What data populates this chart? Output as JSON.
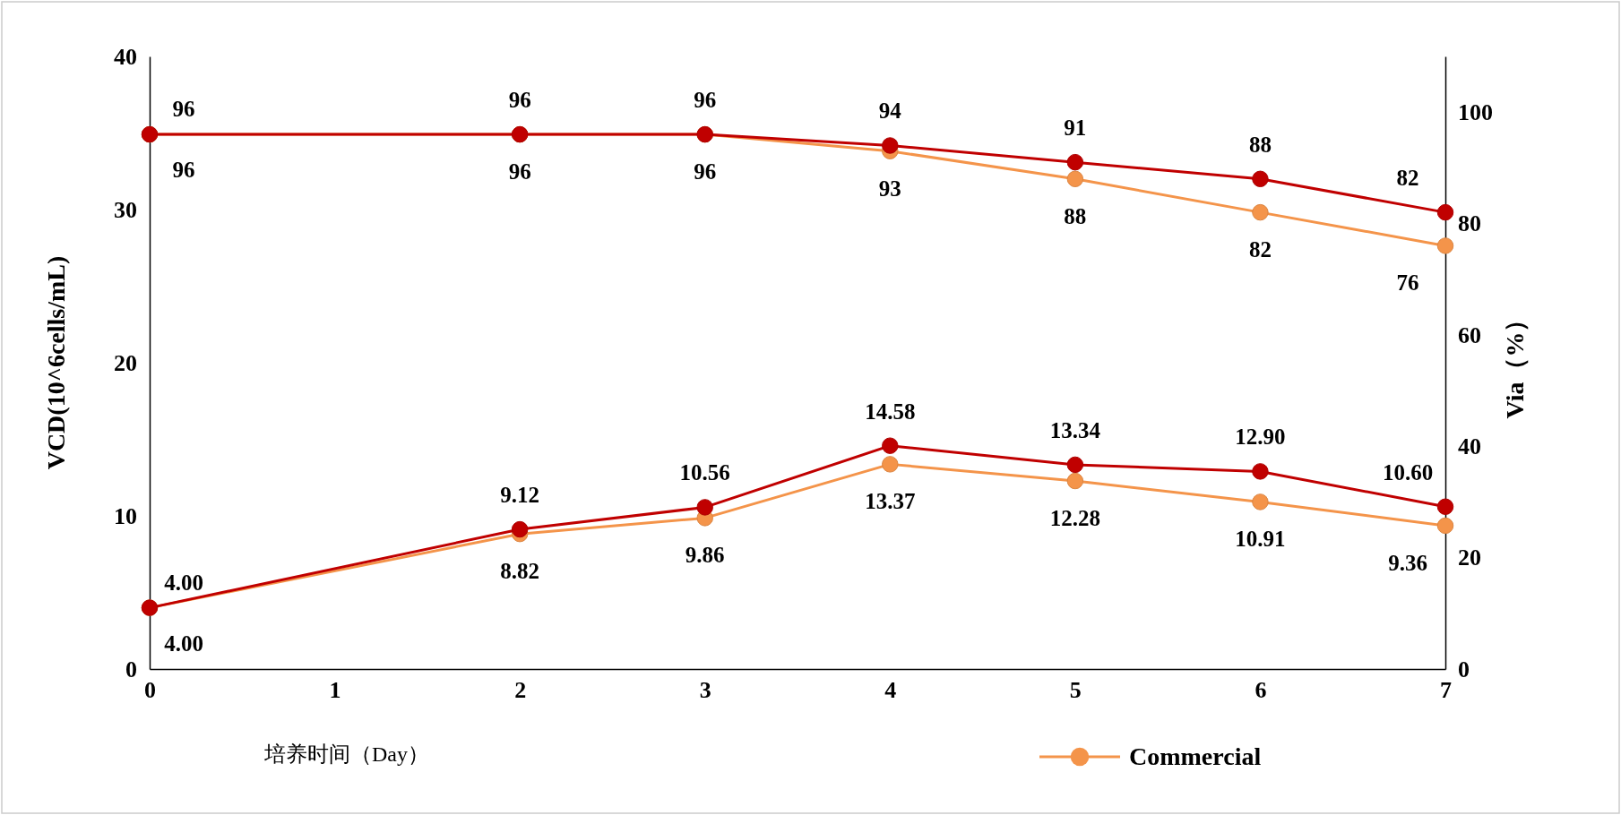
{
  "chart_data": {
    "type": "line",
    "xlabel": "培养时间（Day）",
    "ylabel": "VCD(10^6cells/mL)",
    "y2label": "Via（%）",
    "xlim": [
      0,
      7
    ],
    "xticks": [
      0,
      1,
      2,
      3,
      4,
      5,
      6,
      7
    ],
    "ylim": [
      0,
      40
    ],
    "yticks": [
      0,
      10,
      20,
      30,
      40
    ],
    "y2lim": [
      0,
      110
    ],
    "y2ticks": [
      0,
      20,
      40,
      60,
      80,
      100
    ],
    "marker": "circle",
    "grid": false,
    "legend": "bottom",
    "series": [
      {
        "color": "#c00000",
        "x": [
          0,
          2,
          3,
          4,
          5,
          6,
          7
        ],
        "values": [
          4.0,
          9.12,
          10.56,
          14.58,
          13.34,
          12.9,
          10.6
        ],
        "value_labels": [
          "4.00",
          "9.12",
          "10.56",
          "14.58",
          "13.34",
          "12.90",
          "10.60"
        ]
      },
      {
        "name": "Commercial",
        "color": "#f4944a",
        "x": [
          0,
          2,
          3,
          4,
          5,
          6,
          7
        ],
        "values": [
          4.0,
          8.82,
          9.86,
          13.37,
          12.28,
          10.91,
          9.36
        ],
        "value_labels": [
          "4.00",
          "8.82",
          "9.86",
          "13.37",
          "12.28",
          "10.91",
          "9.36"
        ]
      },
      {
        "axis": "y2",
        "color": "#c00000",
        "x": [
          0,
          2,
          3,
          4,
          5,
          6,
          7
        ],
        "values": [
          96,
          96,
          96,
          94,
          91,
          88,
          82
        ],
        "value_labels": [
          "96",
          "96",
          "96",
          "94",
          "91",
          "88",
          "82"
        ]
      },
      {
        "axis": "y2",
        "color": "#f4944a",
        "x": [
          0,
          2,
          3,
          4,
          5,
          6,
          7
        ],
        "values": [
          96,
          96,
          96,
          93,
          88,
          82,
          76
        ],
        "value_labels": [
          "96",
          "96",
          "96",
          "93",
          "88",
          "82",
          "76"
        ]
      }
    ]
  }
}
